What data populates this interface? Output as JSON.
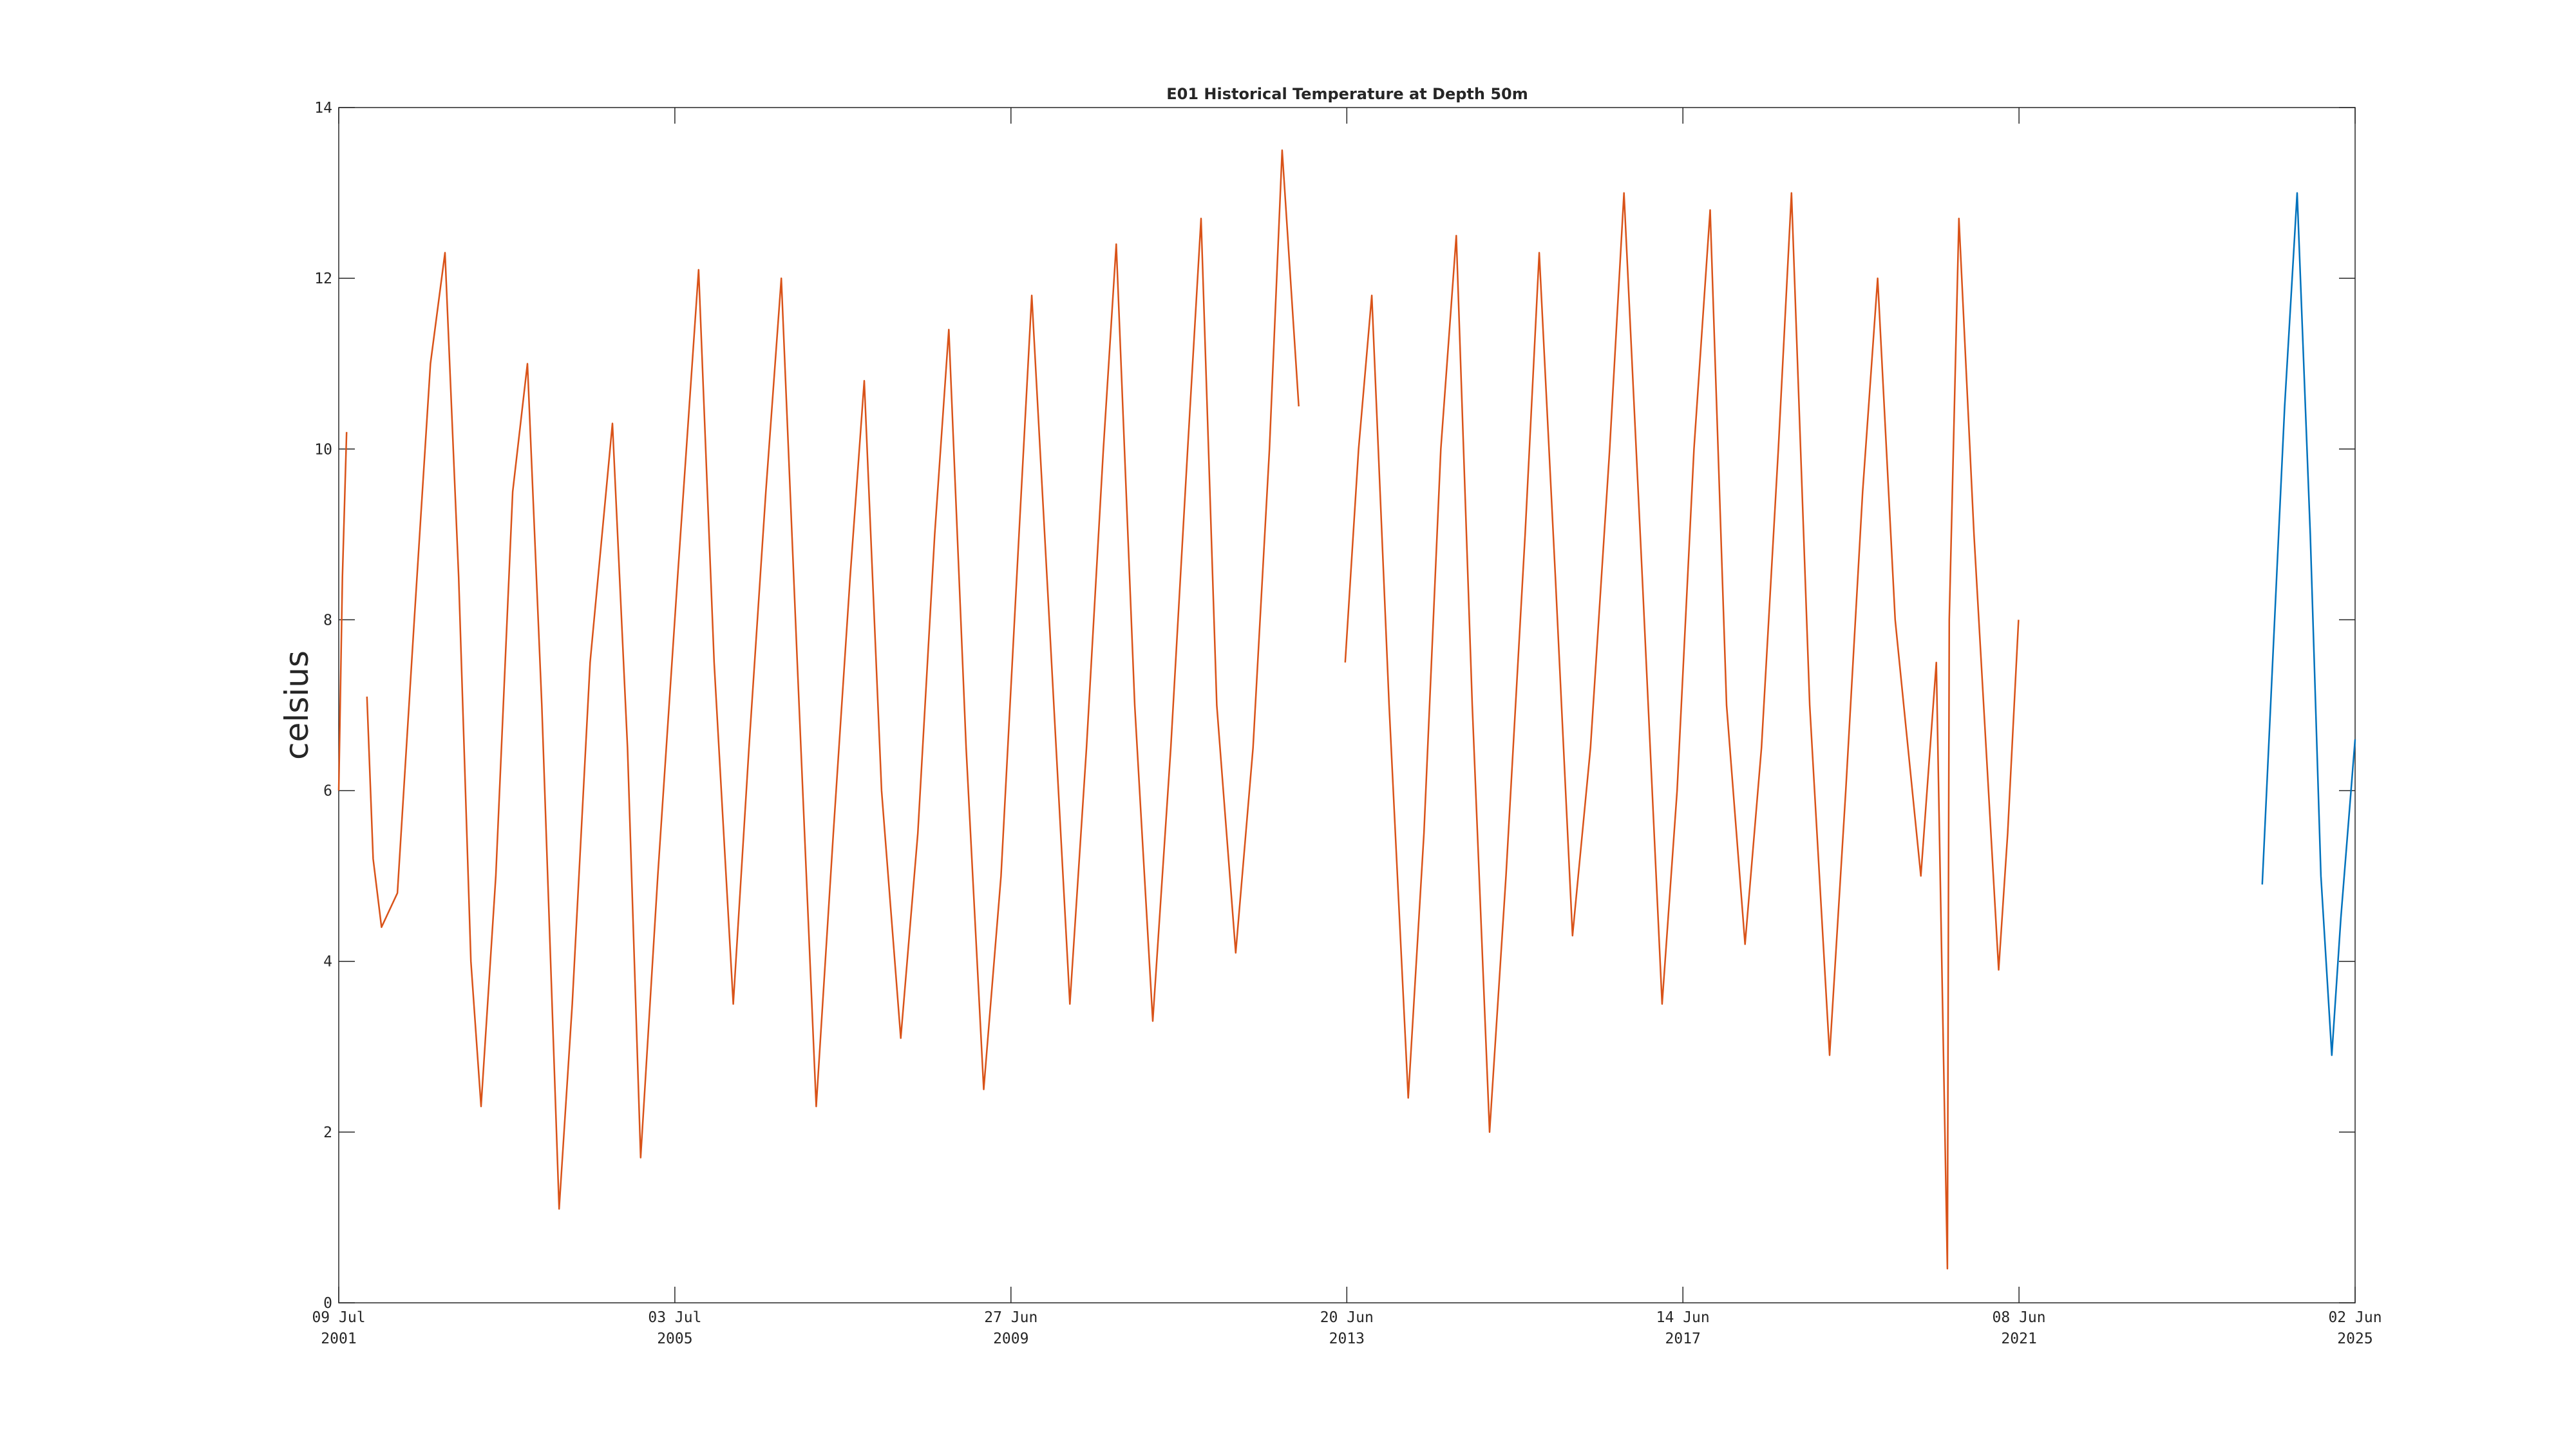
{
  "chart_data": {
    "type": "line",
    "title": "E01 Historical Temperature at Depth 50m",
    "y_label": "celsius",
    "xlim": [
      "2001-07-09",
      "2025-06-02"
    ],
    "xticks": [
      {
        "value": "2001-07-09",
        "label": [
          "09 Jul",
          "2001"
        ]
      },
      {
        "value": "2005-07-03",
        "label": [
          "03 Jul",
          "2005"
        ]
      },
      {
        "value": "2009-06-27",
        "label": [
          "27 Jun",
          "2009"
        ]
      },
      {
        "value": "2013-06-20",
        "label": [
          "20 Jun",
          "2013"
        ]
      },
      {
        "value": "2017-06-14",
        "label": [
          "14 Jun",
          "2017"
        ]
      },
      {
        "value": "2021-06-08",
        "label": [
          "08 Jun",
          "2021"
        ]
      },
      {
        "value": "2025-06-02",
        "label": [
          "02 Jun",
          "2025"
        ]
      }
    ],
    "ylim": [
      0,
      14
    ],
    "yticks": [
      0,
      2,
      4,
      6,
      8,
      10,
      12,
      14
    ],
    "grid": false,
    "series": [
      {
        "color": "#d95319",
        "x": [
          "2001-07-09",
          "2001-07-25",
          "2001-08-12",
          "2001-09-20",
          "2001-11-08",
          "2001-12-05",
          "2002-01-10",
          "2002-03-20",
          "2002-06-01",
          "2002-08-10",
          "2002-10-12",
          "2002-12-10",
          "2003-02-01",
          "2003-03-17",
          "2003-05-20",
          "2003-08-01",
          "2003-10-04",
          "2003-12-05",
          "2004-02-18",
          "2004-04-15",
          "2004-07-01",
          "2004-10-06",
          "2004-12-10",
          "2005-02-05",
          "2005-04-20",
          "2005-07-15",
          "2005-10-14",
          "2005-12-20",
          "2006-03-13",
          "2006-05-20",
          "2006-08-01",
          "2006-10-07",
          "2006-12-15",
          "2007-03-07",
          "2007-05-20",
          "2007-08-01",
          "2007-10-01",
          "2007-12-15",
          "2008-03-07",
          "2008-05-20",
          "2008-08-01",
          "2008-10-01",
          "2008-12-15",
          "2009-03-01",
          "2009-05-15",
          "2009-08-01",
          "2009-09-25",
          "2009-12-10",
          "2010-03-09",
          "2010-05-20",
          "2010-08-01",
          "2010-09-26",
          "2010-12-15",
          "2011-03-03",
          "2011-05-20",
          "2011-08-01",
          "2011-09-28",
          "2011-12-05",
          "2012-02-25",
          "2012-05-10",
          "2012-07-20",
          "2012-09-13",
          "2012-11-24",
          "2013-02-01",
          "2013-06-13",
          "2013-08-10",
          "2013-10-06",
          "2013-12-20",
          "2014-03-13",
          "2014-05-20",
          "2014-08-01",
          "2014-10-07",
          "2014-12-15",
          "2015-02-28",
          "2015-05-10",
          "2015-08-01",
          "2015-10-01",
          "2015-12-10",
          "2016-02-22",
          "2016-05-10",
          "2016-08-01",
          "2016-10-02",
          "2016-12-20",
          "2017-03-16",
          "2017-05-20",
          "2017-08-01",
          "2017-10-10",
          "2017-12-20",
          "2018-03-10",
          "2018-05-20",
          "2018-08-01",
          "2018-09-27",
          "2018-12-15",
          "2019-03-11",
          "2019-05-20",
          "2019-08-01",
          "2019-10-05",
          "2019-12-20",
          "2020-04-09",
          "2020-06-15",
          "2020-08-02",
          "2020-08-10",
          "2020-09-21",
          "2020-11-25",
          "2021-03-12",
          "2021-04-20",
          "2021-06-06"
        ],
        "values": [
          6.0,
          8.5,
          10.2,
          null,
          7.1,
          5.2,
          4.4,
          4.8,
          8.0,
          11.0,
          12.3,
          8.5,
          4.0,
          2.3,
          5.0,
          9.5,
          11.0,
          7.0,
          1.1,
          3.5,
          7.5,
          10.3,
          6.5,
          1.7,
          5.0,
          8.5,
          12.1,
          7.5,
          3.5,
          6.5,
          9.5,
          12.0,
          7.5,
          2.3,
          5.5,
          8.5,
          10.8,
          6.0,
          3.1,
          5.5,
          9.0,
          11.4,
          6.5,
          2.5,
          5.0,
          9.0,
          11.8,
          8.0,
          3.5,
          6.5,
          10.0,
          12.4,
          7.0,
          3.3,
          6.5,
          10.0,
          12.7,
          7.0,
          4.1,
          6.5,
          10.0,
          13.5,
          10.5,
          null,
          7.5,
          10.0,
          11.8,
          7.0,
          2.4,
          5.5,
          10.0,
          12.5,
          7.0,
          2.0,
          5.0,
          9.0,
          12.3,
          8.5,
          4.3,
          6.5,
          10.0,
          13.0,
          8.5,
          3.5,
          6.0,
          10.0,
          12.8,
          7.0,
          4.2,
          6.5,
          10.0,
          13.0,
          7.0,
          2.9,
          6.0,
          9.5,
          12.0,
          8.0,
          5.0,
          7.5,
          0.4,
          8.0,
          12.7,
          9.0,
          3.9,
          5.5,
          8.0
        ]
      },
      {
        "color": "#0072bd",
        "x": [
          "2024-04-26",
          "2024-06-10",
          "2024-08-01",
          "2024-09-24",
          "2024-11-20",
          "2025-01-05",
          "2025-02-21",
          "2025-04-01",
          "2025-06-02"
        ],
        "values": [
          4.9,
          7.5,
          10.5,
          13.0,
          9.0,
          5.0,
          2.9,
          4.5,
          6.6
        ]
      }
    ]
  }
}
